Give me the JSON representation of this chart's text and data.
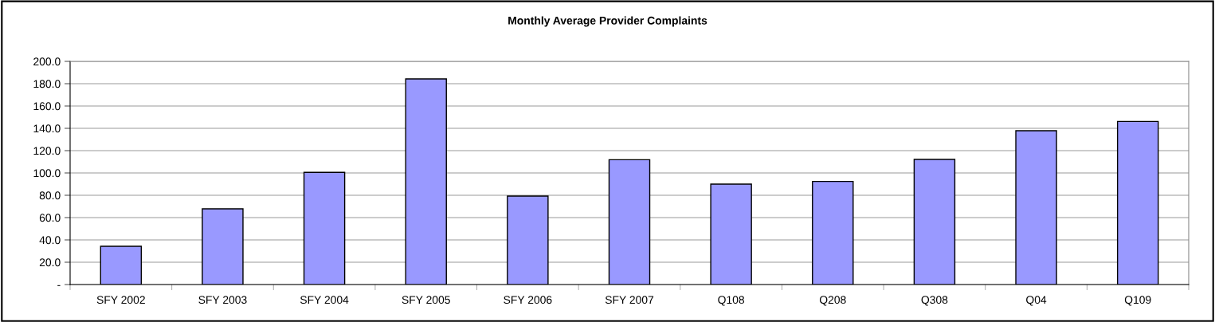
{
  "chart_data": {
    "type": "bar",
    "title": "Monthly Average Provider Complaints",
    "categories": [
      "SFY 2002",
      "SFY 2003",
      "SFY 2004",
      "SFY 2005",
      "SFY 2006",
      "SFY 2007",
      "Q108",
      "Q208",
      "Q308",
      "Q04",
      "Q109"
    ],
    "values": [
      34.3,
      67.9,
      100.5,
      184.3,
      79.3,
      111.9,
      90.0,
      92.4,
      112.1,
      137.9,
      146.2
    ],
    "color": "#9999ff",
    "ylim": [
      0,
      200
    ],
    "yticks": [
      {
        "value": 0,
        "label": "-"
      },
      {
        "value": 20,
        "label": "20.0"
      },
      {
        "value": 40,
        "label": "40.0"
      },
      {
        "value": 60,
        "label": "60.0"
      },
      {
        "value": 80,
        "label": "80.0"
      },
      {
        "value": 100,
        "label": "100.0"
      },
      {
        "value": 120,
        "label": "120.0"
      },
      {
        "value": 140,
        "label": "140.0"
      },
      {
        "value": 160,
        "label": "160.0"
      },
      {
        "value": 180,
        "label": "180.0"
      },
      {
        "value": 200,
        "label": "200.0"
      }
    ],
    "grid": "y",
    "legend": false
  }
}
